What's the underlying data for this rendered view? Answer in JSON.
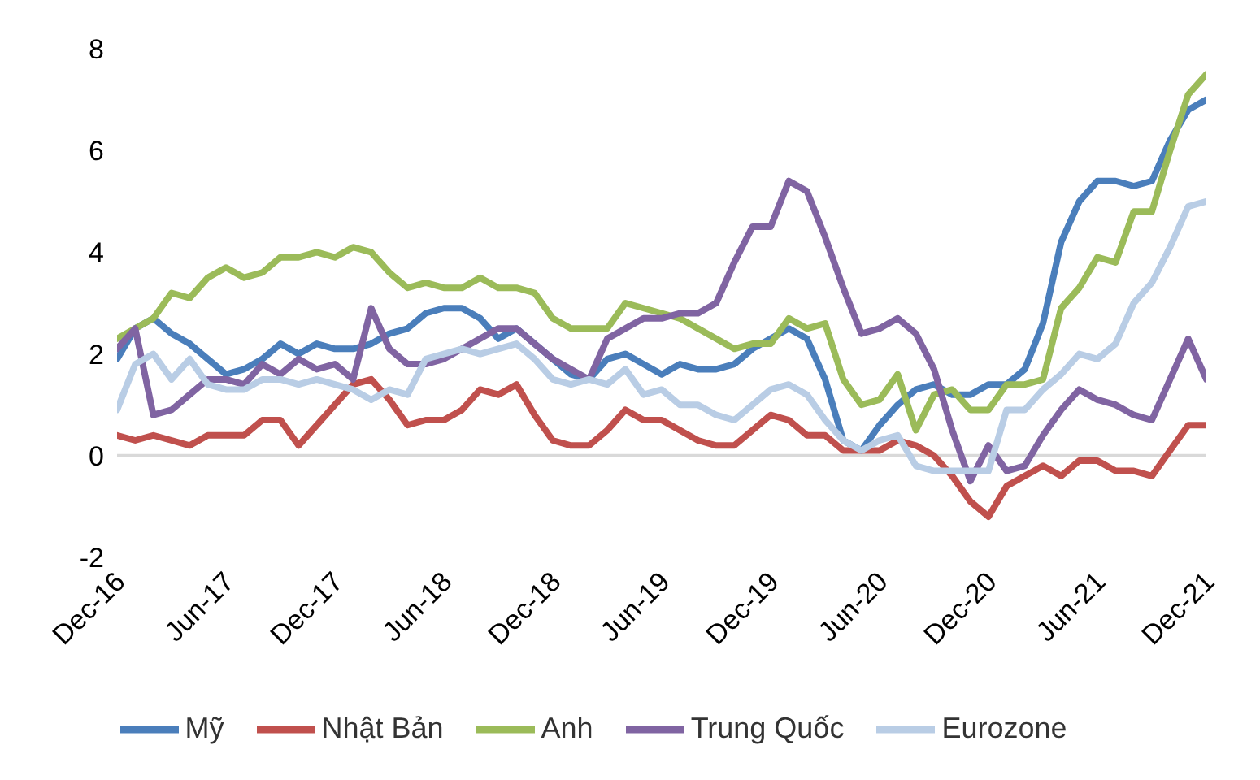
{
  "chart_data": {
    "type": "line",
    "categories": [
      "Dec-16",
      null,
      null,
      null,
      null,
      null,
      "Jun-17",
      null,
      null,
      null,
      null,
      null,
      "Dec-17",
      null,
      null,
      null,
      null,
      null,
      "Jun-18",
      null,
      null,
      null,
      null,
      null,
      "Dec-18",
      null,
      null,
      null,
      null,
      null,
      "Jun-19",
      null,
      null,
      null,
      null,
      null,
      "Dec-19",
      null,
      null,
      null,
      null,
      null,
      "Jun-20",
      null,
      null,
      null,
      null,
      null,
      "Dec-20",
      null,
      null,
      null,
      null,
      null,
      "Jun-21",
      null,
      null,
      null,
      null,
      null,
      "Dec-21"
    ],
    "series": [
      {
        "name": "Mỹ",
        "color": "#4a7ebb",
        "values": [
          1.9,
          2.5,
          2.7,
          2.4,
          2.2,
          1.9,
          1.6,
          1.7,
          1.9,
          2.2,
          2.0,
          2.2,
          2.1,
          2.1,
          2.2,
          2.4,
          2.5,
          2.8,
          2.9,
          2.9,
          2.7,
          2.3,
          2.5,
          2.2,
          1.9,
          1.6,
          1.5,
          1.9,
          2.0,
          1.8,
          1.6,
          1.8,
          1.7,
          1.7,
          1.8,
          2.1,
          2.3,
          2.5,
          2.3,
          1.5,
          0.3,
          0.1,
          0.6,
          1.0,
          1.3,
          1.4,
          1.2,
          1.2,
          1.4,
          1.4,
          1.7,
          2.6,
          4.2,
          5.0,
          5.4,
          5.4,
          5.3,
          5.4,
          6.2,
          6.8,
          7.0
        ]
      },
      {
        "name": "Nhật Bản",
        "color": "#c0504d",
        "values": [
          0.4,
          0.3,
          0.4,
          0.3,
          0.2,
          0.4,
          0.4,
          0.4,
          0.7,
          0.7,
          0.2,
          0.6,
          1.0,
          1.4,
          1.5,
          1.1,
          0.6,
          0.7,
          0.7,
          0.9,
          1.3,
          1.2,
          1.4,
          0.8,
          0.3,
          0.2,
          0.2,
          0.5,
          0.9,
          0.7,
          0.7,
          0.5,
          0.3,
          0.2,
          0.2,
          0.5,
          0.8,
          0.7,
          0.4,
          0.4,
          0.1,
          0.1,
          0.1,
          0.3,
          0.2,
          0.0,
          -0.4,
          -0.9,
          -1.2,
          -0.6,
          -0.4,
          -0.2,
          -0.4,
          -0.1,
          -0.1,
          -0.3,
          -0.3,
          -0.4,
          0.1,
          0.6,
          0.6
        ]
      },
      {
        "name": "Anh",
        "color": "#9bbb59",
        "values": [
          2.3,
          2.5,
          2.7,
          3.2,
          3.1,
          3.5,
          3.7,
          3.5,
          3.6,
          3.9,
          3.9,
          4.0,
          3.9,
          4.1,
          4.0,
          3.6,
          3.3,
          3.4,
          3.3,
          3.3,
          3.5,
          3.3,
          3.3,
          3.2,
          2.7,
          2.5,
          2.5,
          2.5,
          3.0,
          2.9,
          2.8,
          2.7,
          2.5,
          2.3,
          2.1,
          2.2,
          2.2,
          2.7,
          2.5,
          2.6,
          1.5,
          1.0,
          1.1,
          1.6,
          0.5,
          1.2,
          1.3,
          0.9,
          0.9,
          1.4,
          1.4,
          1.5,
          2.9,
          3.3,
          3.9,
          3.8,
          4.8,
          4.8,
          6.0,
          7.1,
          7.5
        ]
      },
      {
        "name": "Trung Quốc",
        "color": "#8064a2",
        "values": [
          2.1,
          2.5,
          0.8,
          0.9,
          1.2,
          1.5,
          1.5,
          1.4,
          1.8,
          1.6,
          1.9,
          1.7,
          1.8,
          1.5,
          2.9,
          2.1,
          1.8,
          1.8,
          1.9,
          2.1,
          2.3,
          2.5,
          2.5,
          2.2,
          1.9,
          1.7,
          1.5,
          2.3,
          2.5,
          2.7,
          2.7,
          2.8,
          2.8,
          3.0,
          3.8,
          4.5,
          4.5,
          5.4,
          5.2,
          4.3,
          3.3,
          2.4,
          2.5,
          2.7,
          2.4,
          1.7,
          0.5,
          -0.5,
          0.2,
          -0.3,
          -0.2,
          0.4,
          0.9,
          1.3,
          1.1,
          1.0,
          0.8,
          0.7,
          1.5,
          2.3,
          1.5
        ]
      },
      {
        "name": "Eurozone",
        "color": "#b9cde5",
        "values": [
          0.9,
          1.8,
          2.0,
          1.5,
          1.9,
          1.4,
          1.3,
          1.3,
          1.5,
          1.5,
          1.4,
          1.5,
          1.4,
          1.3,
          1.1,
          1.3,
          1.2,
          1.9,
          2.0,
          2.1,
          2.0,
          2.1,
          2.2,
          1.9,
          1.5,
          1.4,
          1.5,
          1.4,
          1.7,
          1.2,
          1.3,
          1.0,
          1.0,
          0.8,
          0.7,
          1.0,
          1.3,
          1.4,
          1.2,
          0.7,
          0.3,
          0.1,
          0.3,
          0.4,
          -0.2,
          -0.3,
          -0.3,
          -0.3,
          -0.3,
          0.9,
          0.9,
          1.3,
          1.6,
          2.0,
          1.9,
          2.2,
          3.0,
          3.4,
          4.1,
          4.9,
          5.0
        ]
      }
    ],
    "ylim": [
      -2,
      8
    ],
    "yticks": [
      -2,
      0,
      2,
      4,
      6,
      8
    ],
    "ref_lines": [
      {
        "axis": "y",
        "value": 0,
        "color": "#d9d9d9"
      }
    ],
    "legend": "bottom",
    "marker": "none",
    "line_style": "solid"
  }
}
